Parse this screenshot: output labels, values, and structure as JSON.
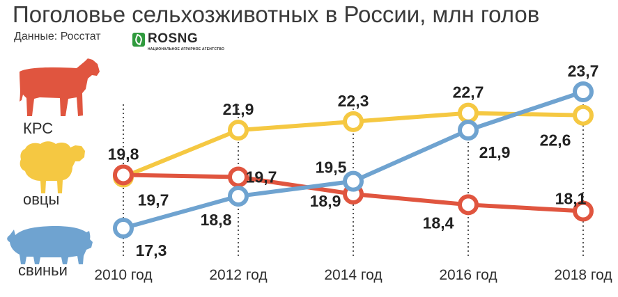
{
  "title": "Поголовье сельхозживотных в России, млн голов",
  "source": "Данные: Росстат",
  "logo": {
    "name": "ROSNG",
    "subtitle": "НАЦИОНАЛЬНОЕ АГРАРНОЕ АГЕНТСТВО"
  },
  "legend": [
    {
      "label": "КРС",
      "icon": "cow-icon",
      "color": "#e0553f"
    },
    {
      "label": "овцы",
      "icon": "sheep-icon",
      "color": "#f5c842"
    },
    {
      "label": "свиньи",
      "icon": "pig-icon",
      "color": "#6fa3d0"
    }
  ],
  "chart_data": {
    "type": "line",
    "x": [
      "2010 год",
      "2012 год",
      "2014 год",
      "2016 год",
      "2018 год"
    ],
    "series": [
      {
        "name": "КРС",
        "color": "#e0553f",
        "values": [
          19.8,
          19.7,
          18.9,
          18.4,
          18.1
        ],
        "labels": [
          "19,8",
          "19,7",
          "18,9",
          "18,4",
          "18,1"
        ]
      },
      {
        "name": "овцы",
        "color": "#f5c842",
        "values": [
          19.7,
          21.9,
          22.3,
          22.7,
          22.6
        ],
        "labels": [
          "19,7",
          "21,9",
          "22,3",
          "22,7",
          "22,6"
        ]
      },
      {
        "name": "свиньи",
        "color": "#6fa3d0",
        "values": [
          17.3,
          18.8,
          19.5,
          21.9,
          23.7
        ],
        "labels": [
          "17,3",
          "18,8",
          "19,5",
          "21,9",
          "23,7"
        ]
      }
    ],
    "ylim": [
      17,
      24
    ],
    "grid": false,
    "legend_position": "left"
  }
}
